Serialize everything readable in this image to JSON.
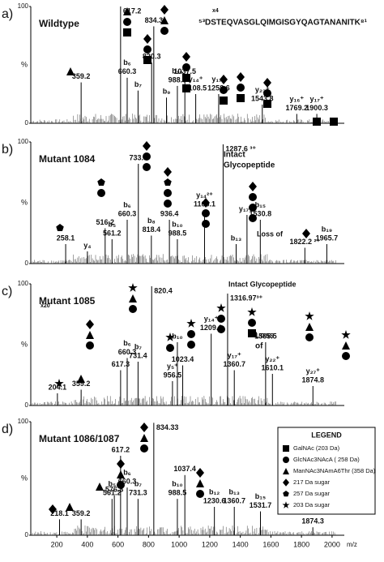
{
  "chart_data": [
    {
      "type": "spectrum",
      "panel": "a)",
      "title": "Wildtype",
      "ylabel": "%",
      "ylim": [
        0,
        100
      ],
      "yticks": [
        0,
        100
      ],
      "xlim": [
        30,
        2080
      ],
      "annotations": [
        "⁵³DSTEQVASGLQIMGISGYQAGTANANITK⁸¹",
        "x4"
      ],
      "peaks": {
        "x": [
          359.2,
          617.2,
          660.3,
          731.4,
          820.3,
          834.3,
          917.4,
          988.5,
          1037.5,
          1108.5,
          1258.6,
          1543.8,
          1769.2,
          1900.3
        ],
        "values": [
          35,
          100,
          39,
          28,
          52,
          83,
          22,
          32,
          39,
          25,
          25,
          16,
          8,
          8
        ],
        "x_labels": [
          "359.2",
          "617.2",
          "660.3",
          null,
          "820.3",
          "834.3",
          null,
          "988.5",
          "1037.5",
          "1108.5",
          "1258.6",
          "1543.8",
          "1769.2",
          "1900.3"
        ],
        "ions": [
          null,
          null,
          "b₆",
          "b₇",
          null,
          null,
          "b₉",
          "b₁₀",
          null,
          "y₁₄⁺",
          "y₁₇⁺",
          "y₂₃⁺",
          "y₁₆⁺",
          "y₁₇⁺"
        ]
      }
    },
    {
      "type": "spectrum",
      "panel": "b)",
      "title": "Mutant 1084",
      "ylabel": "%",
      "ylim": [
        0,
        100
      ],
      "yticks": [
        0,
        100
      ],
      "xlim": [
        30,
        2080
      ],
      "annotations": [
        "Intact",
        "Glycopeptide",
        "Loss of"
      ],
      "peaks": {
        "x": [
          258.1,
          400.2,
          516.2,
          561.2,
          660.3,
          733.3,
          818.4,
          936.4,
          988.5,
          1166.1,
          1287.6,
          1372.7,
          1443.7,
          1530.8,
          1822.2,
          1965.7
        ],
        "values": [
          16,
          10,
          29,
          20,
          36,
          82,
          23,
          36,
          20,
          44,
          98,
          16,
          40,
          36,
          13,
          16
        ],
        "x_labels": [
          "258.1",
          null,
          "516.2",
          "561.2",
          "660.3",
          "733.3",
          "818.4",
          "936.4",
          "988.5",
          "1166.1",
          "1287.6 ³⁺",
          null,
          null,
          "1530.8",
          "1822.2 ²⁺",
          "1965.7"
        ],
        "ions": [
          null,
          "y₄",
          null,
          "b₅",
          "b₆",
          null,
          "b₈",
          null,
          "b₁₀",
          "y₁₄²⁺",
          null,
          "b₁₃",
          "y₁₇²⁺",
          "b₁₅",
          null,
          "b₁₉"
        ]
      }
    },
    {
      "type": "spectrum",
      "panel": "c)",
      "title": "Mutant 1085",
      "ylabel": "%",
      "ylim": [
        0,
        100
      ],
      "yticks": [
        0,
        100
      ],
      "xlim": [
        30,
        2080
      ],
      "annotations": [
        "Intact Glycopeptide",
        "x20",
        "Loss",
        "of"
      ],
      "peaks": {
        "x": [
          204.1,
          359.2,
          617.3,
          660.3,
          731.4,
          820.4,
          956.5,
          988.5,
          1023.4,
          1209.6,
          1316.97,
          1360.7,
          1565.5,
          1610.1,
          1874.8
        ],
        "values": [
          10,
          13,
          29,
          39,
          36,
          98,
          20,
          52,
          33,
          59,
          92,
          29,
          52,
          26,
          16
        ],
        "x_labels": [
          "204.1",
          "359.2",
          "617.3",
          "660.3",
          "731.4",
          "820.4",
          "956.5",
          null,
          "1023.4",
          "1209.6",
          "1316.97³⁺",
          "1360.7",
          "1565.5",
          "1610.1",
          "1874.8"
        ],
        "ions": [
          null,
          null,
          null,
          "b₆",
          "b₇",
          null,
          "y₅⁺",
          "b₁₀",
          null,
          "y₁₄⁺",
          null,
          "y₁₇⁺",
          null,
          "y₂₂⁺",
          "y₂₇⁺"
        ]
      }
    },
    {
      "type": "spectrum",
      "panel": "d)",
      "title": "Mutant 1086/1087",
      "ylabel": "%",
      "xlabel": "m/z",
      "ylim": [
        0,
        100
      ],
      "yticks": [
        0,
        100
      ],
      "xlim": [
        30,
        2080
      ],
      "xticks": [
        200,
        400,
        600,
        800,
        1000,
        1200,
        1400,
        1600,
        1800,
        2000
      ],
      "legend": {
        "title": "LEGEND",
        "items": [
          "GalNAc (203 Da)",
          "GlcNAc3NAcA ( 258 Da)",
          "ManNAc3NAmA6Thr (358 Da)",
          "217 Da sugar",
          "257 Da sugar",
          "203 Da sugar"
        ]
      },
      "peaks": {
        "x": [
          218.1,
          359.2,
          561.2,
          576.3,
          617.2,
          660.3,
          731.3,
          834.33,
          988.5,
          1037.4,
          1230.6,
          1360.7,
          1531.7,
          1874.3
        ],
        "values": [
          14,
          14,
          32,
          35,
          70,
          42,
          32,
          99,
          32,
          53,
          25,
          25,
          21,
          7
        ],
        "x_labels": [
          "218.1",
          "359.2",
          "561.2",
          "576.3",
          "617.2",
          "660.3",
          "731.3",
          "834.33",
          "988.5",
          "1037.4",
          "1230.6",
          "1360.7",
          "1531.7",
          "1874.3"
        ],
        "ions": [
          null,
          null,
          "b₅",
          null,
          null,
          "b₆",
          "b₇",
          null,
          "b₁₀",
          null,
          "b₁₂",
          "b₁₃",
          "b₁₅",
          null
        ]
      }
    }
  ]
}
